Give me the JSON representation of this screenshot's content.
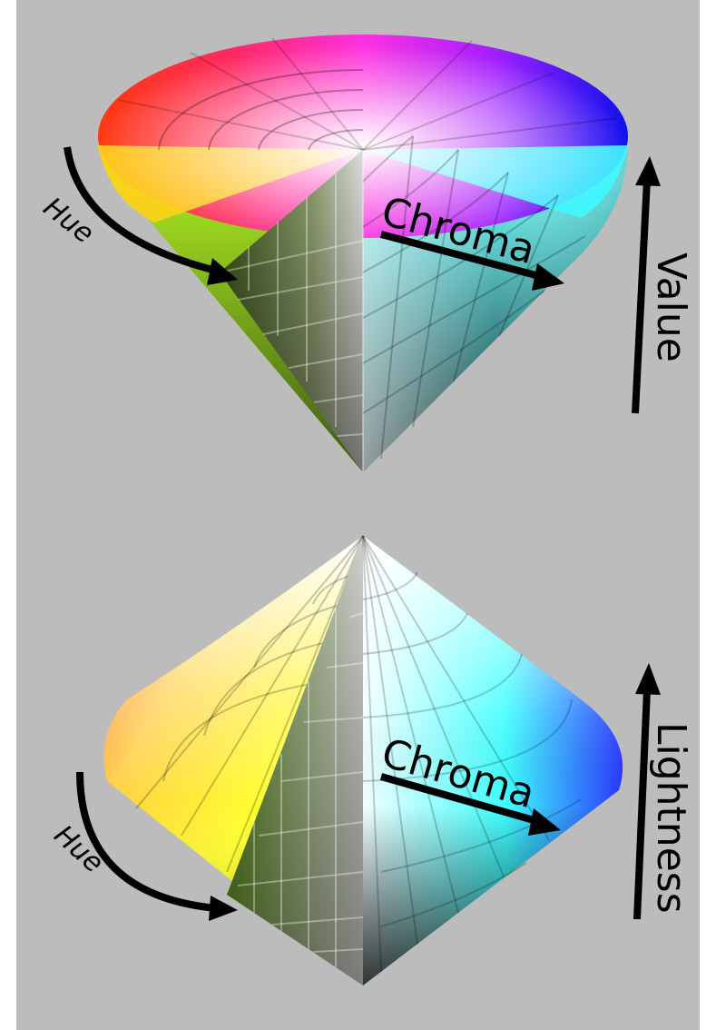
{
  "cone_model": {
    "labels": {
      "hue": "Hue",
      "chroma": "Chroma",
      "vertical": "Value"
    }
  },
  "bicone_model": {
    "labels": {
      "hue": "Hue",
      "chroma": "Chroma",
      "vertical": "Lightness"
    }
  },
  "colors": {
    "background": "#bcbcbc",
    "red": "#ff2020",
    "magenta": "#ff1cd8",
    "blue": "#1c1cff",
    "cyan": "#22ffff",
    "yellow": "#ffff20",
    "green": "#a8ff20"
  }
}
